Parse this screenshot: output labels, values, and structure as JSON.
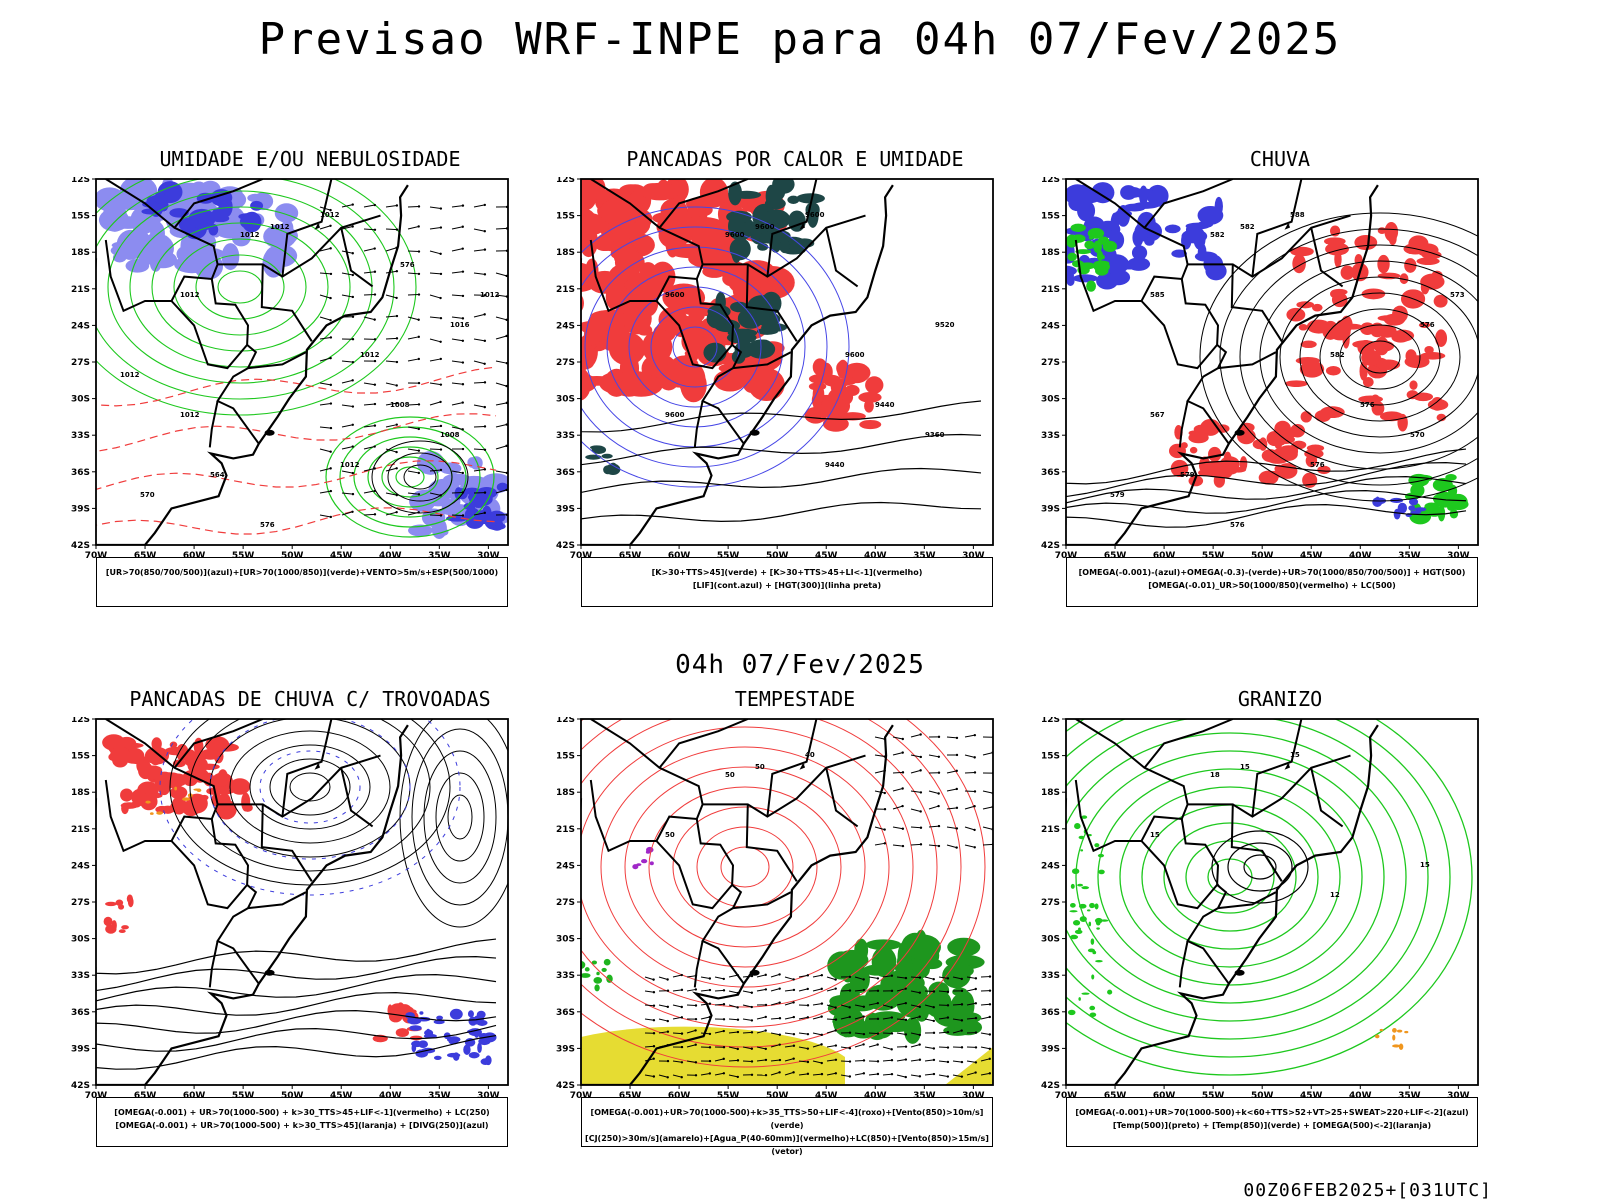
{
  "title": "Previsao WRF-INPE  para 04h 07/Fev/2025",
  "mid_label": "04h 07/Fev/2025",
  "footer": "00Z06FEB2025+[031UTC]",
  "axes": {
    "lat_labels": [
      "12S",
      "15S",
      "18S",
      "21S",
      "24S",
      "27S",
      "30S",
      "33S",
      "36S",
      "39S",
      "42S"
    ],
    "lon_labels": [
      "70W",
      "65W",
      "60W",
      "55W",
      "50W",
      "45W",
      "40W",
      "35W",
      "30W"
    ]
  },
  "colors": {
    "humidity_blue": "#8c8cf0",
    "deep_blue": "#3c3cdc",
    "green": "#1ec81e",
    "red": "#f03c3c",
    "dark_teal": "#1e4646",
    "yellow": "#e6dc32",
    "orange": "#f0961e",
    "purple": "#a028c8"
  },
  "panels": [
    {
      "title": "UMIDADE E/OU NEBULOSIDADE",
      "legend": [
        "[UR>70(850/700/500)](azul)+[UR>70(1000/850)](verde)+VENTO>5m/s+ESP(500/1000)"
      ],
      "contour_labels": [
        "1012",
        "1012",
        "1012",
        "1012",
        "1012",
        "1016",
        "1008",
        "1012",
        "1008",
        "1012",
        "1012",
        "576",
        "570",
        "564",
        "576",
        "1012"
      ]
    },
    {
      "title": "PANCADAS POR CALOR E UMIDADE",
      "legend": [
        "[K>30+TTS>45](verde) + [K>30+TTS>45+LI<-1](vermelho)",
        "[LIF](cont.azul) + [HGT(300)](linha preta)"
      ],
      "contour_labels": [
        "9600",
        "9600",
        "9600",
        "9600",
        "9600",
        "9520",
        "9440",
        "9440",
        "9360",
        "9600"
      ]
    },
    {
      "title": "CHUVA",
      "legend": [
        "[OMEGA(-0.001)-(azul)+OMEGA(-0.3)-(verde)+UR>70(1000/850/700/500)] + HGT(500)",
        "[OMEGA(-0.01)_UR>50(1000/850)(vermelho) + LC(500)"
      ],
      "contour_labels": [
        "582",
        "582",
        "588",
        "585",
        "582",
        "576",
        "576",
        "576",
        "570",
        "567",
        "573",
        "576",
        "579",
        "579"
      ]
    },
    {
      "title": "PANCADAS DE CHUVA C/ TROVOADAS",
      "legend": [
        "[OMEGA(-0.001) + UR>70(1000-500) + k>30_TTS>45+LIF<-1](vermelho) + LC(250)",
        "[OMEGA(-0.001) + UR>70(1000-500) + k>30_TTS>45](laranja) + [DIVG(250)](azul)"
      ],
      "contour_labels": []
    },
    {
      "title": "TEMPESTADE",
      "legend": [
        "[OMEGA(-0.001)+UR>70(1000-500)+k>35_TTS>50+LIF<-4](roxo)+[Vento(850)>10m/s](verde)",
        "[CJ(250)>30m/s](amarelo)+[Agua_P(40-60mm)](vermelho)+LC(850)+[Vento(850)>15m/s](vetor)"
      ],
      "contour_labels": [
        "50",
        "50",
        "40",
        "50"
      ]
    },
    {
      "title": "GRANIZO",
      "legend": [
        "[OMEGA(-0.001)+UR>70(1000-500)+k<60+TTS>52+VT>25+SWEAT>220+LIF<-2](azul)",
        "[Temp(500)](preto) + [Temp(850)](verde) + [OMEGA(500)<-2](laranja)"
      ],
      "contour_labels": [
        "15",
        "18",
        "15",
        "15",
        "12",
        "15"
      ]
    }
  ]
}
